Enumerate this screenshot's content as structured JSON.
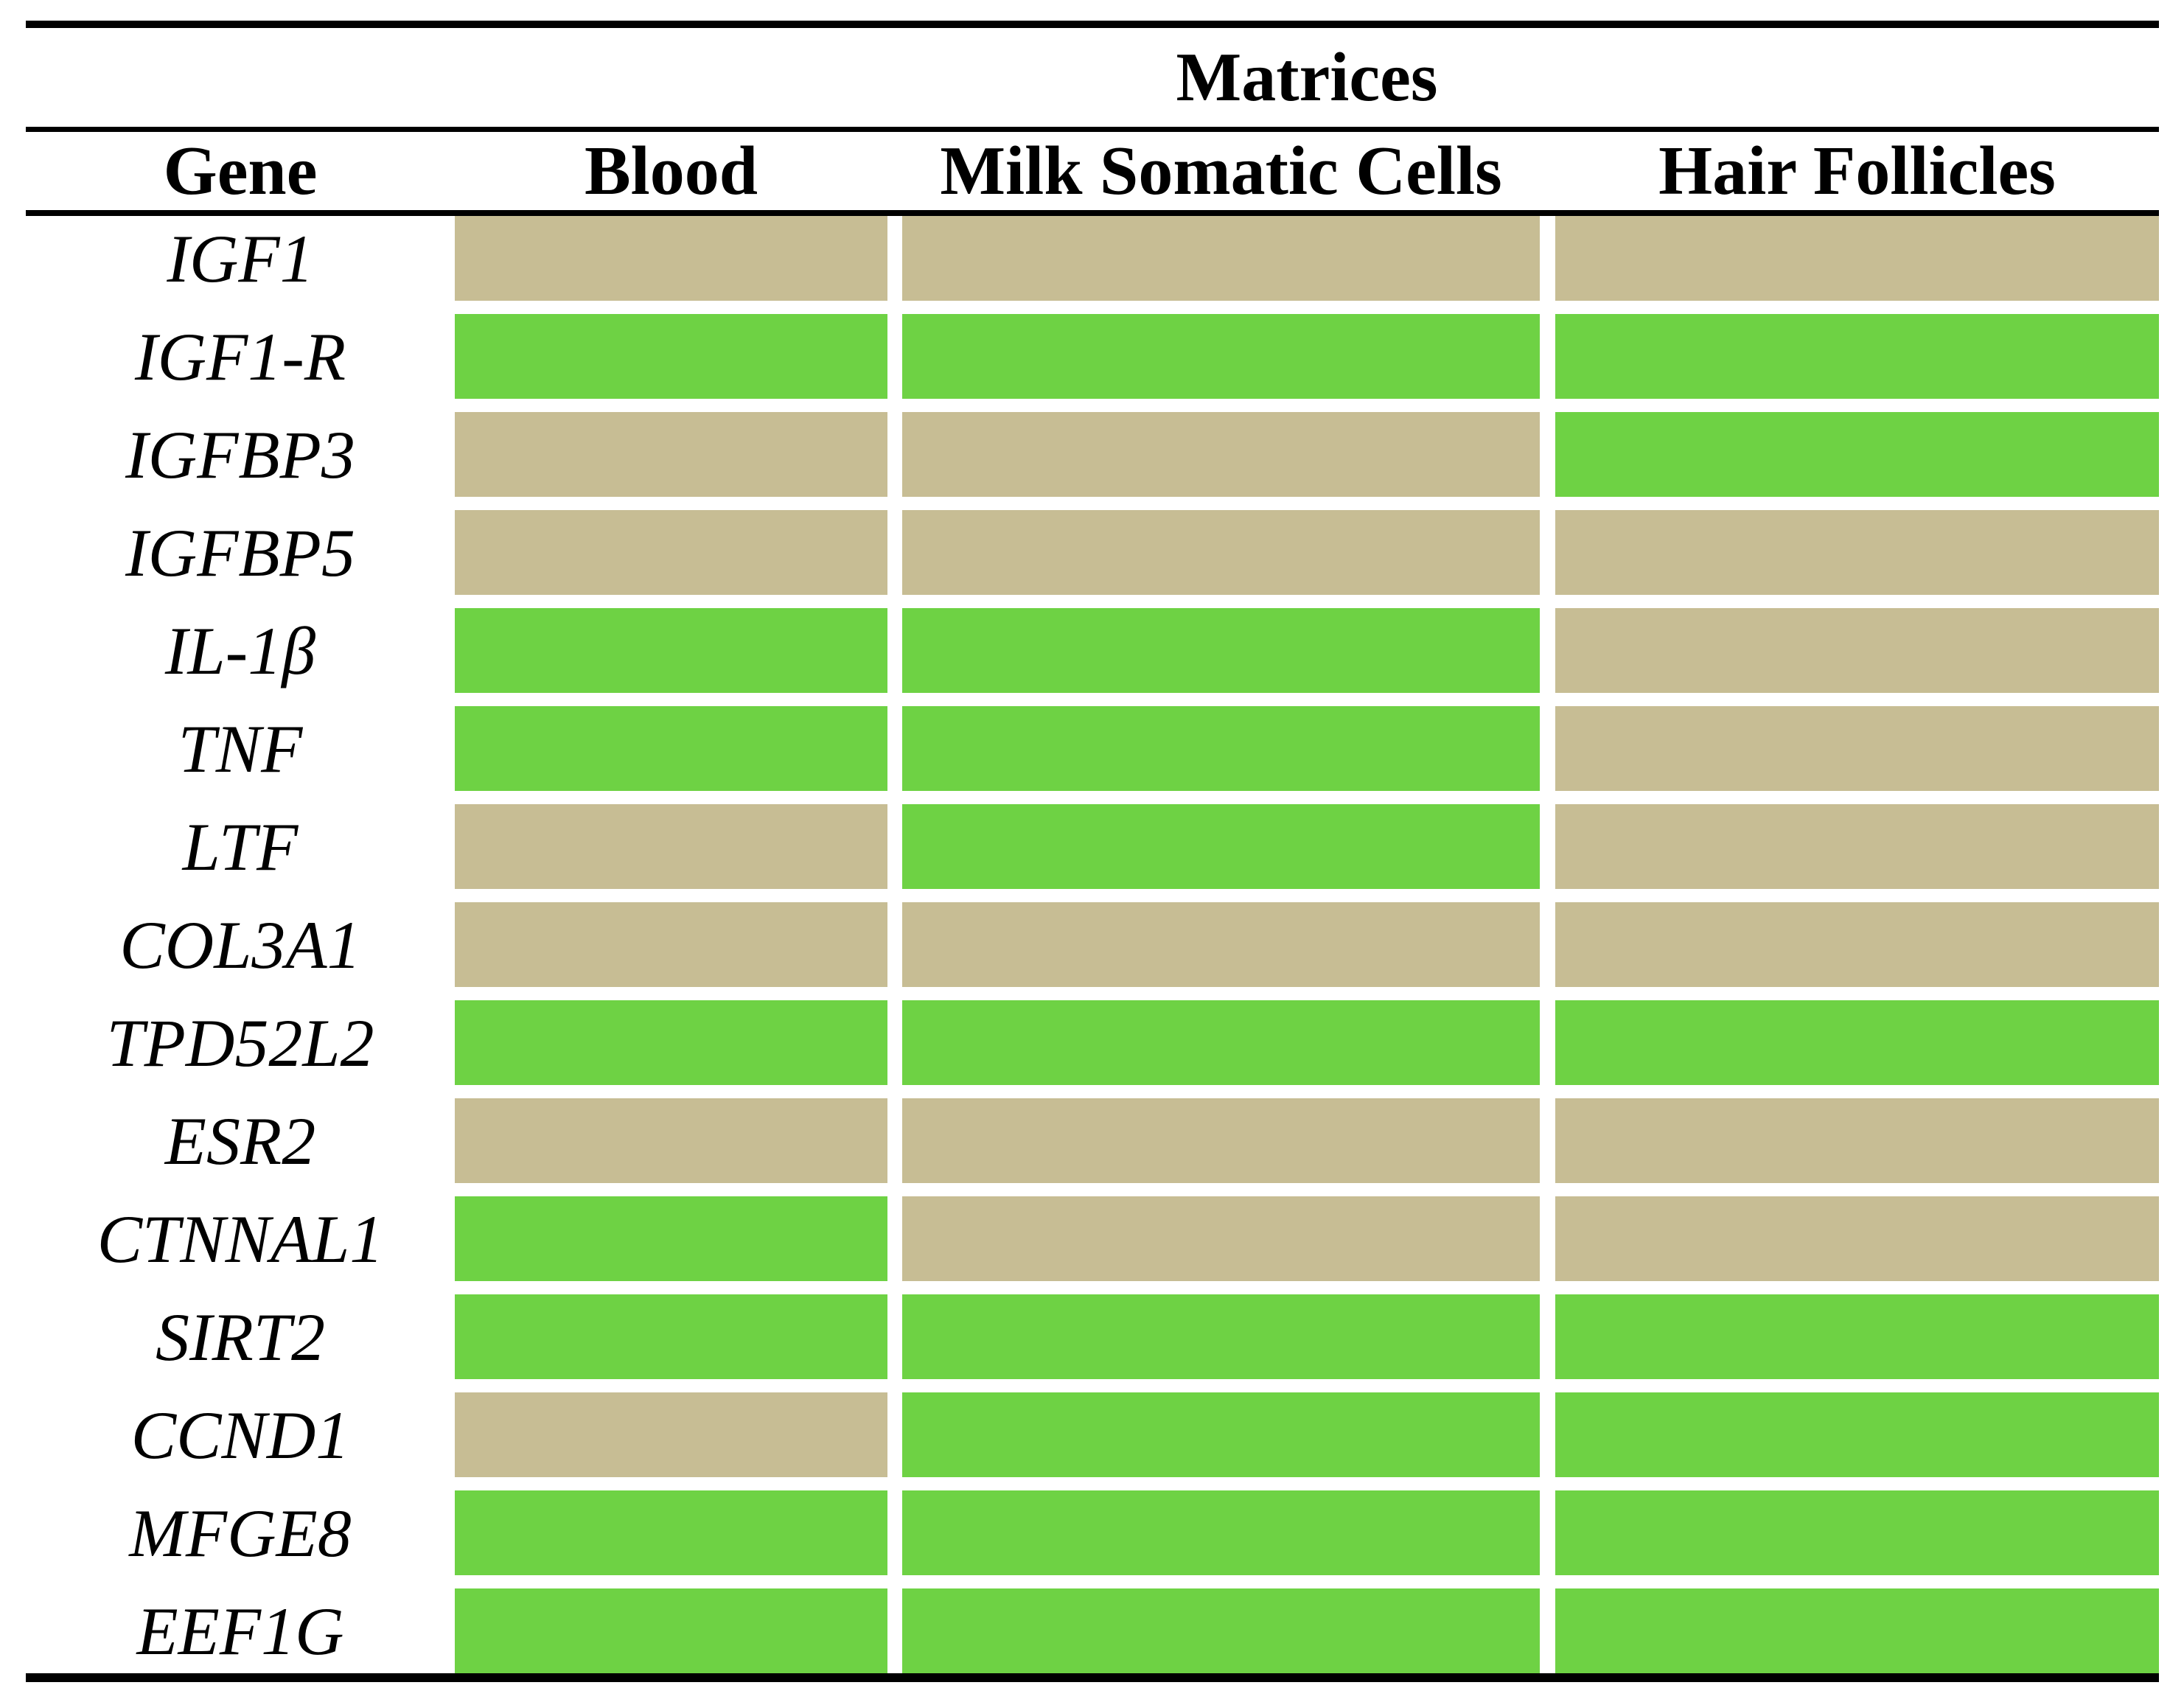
{
  "title": "Matrices",
  "header": {
    "gene": "Gene",
    "matrices": [
      "Blood",
      "Milk Somatic Cells",
      "Hair Follicles"
    ]
  },
  "colors": {
    "detected_green": "#6ED244",
    "not_detected_tan": "#C7BD94",
    "rule_black": "#000000",
    "background_white": "#FFFFFF"
  },
  "chart_data": {
    "type": "heatmap",
    "title": "Matrices",
    "rows": [
      "IGF1",
      "IGF1-R",
      "IGFBP3",
      "IGFBP5",
      "IL-1β",
      "TNF",
      "LTF",
      "COL3A1",
      "TPD52L2",
      "ESR2",
      "CTNNAL1",
      "SIRT2",
      "CCND1",
      "MFGE8",
      "EEF1G"
    ],
    "columns": [
      "Blood",
      "Milk Somatic Cells",
      "Hair Follicles"
    ],
    "values": [
      [
        0,
        0,
        0
      ],
      [
        1,
        1,
        1
      ],
      [
        0,
        0,
        1
      ],
      [
        0,
        0,
        0
      ],
      [
        1,
        1,
        0
      ],
      [
        1,
        1,
        0
      ],
      [
        0,
        1,
        0
      ],
      [
        0,
        0,
        0
      ],
      [
        1,
        1,
        1
      ],
      [
        0,
        0,
        0
      ],
      [
        1,
        0,
        0
      ],
      [
        1,
        1,
        1
      ],
      [
        0,
        1,
        1
      ],
      [
        1,
        1,
        1
      ],
      [
        1,
        1,
        1
      ]
    ],
    "value_meaning": {
      "1": "green cell (#6ED244)",
      "0": "tan cell (#C7BD94)"
    },
    "layout": {
      "row_label_style": "italic serif",
      "header_style": "bold serif",
      "grid": "white gaps between colored cells, black horizontal rules top/middle/bottom"
    }
  }
}
